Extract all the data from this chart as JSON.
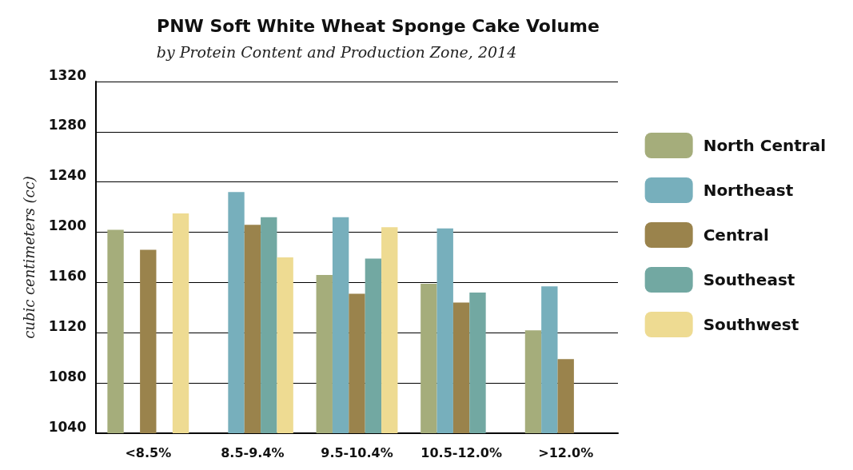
{
  "chart_data": {
    "type": "bar",
    "title": "PNW Soft White Wheat Sponge Cake Volume",
    "subtitle": "by Protein Content and Production Zone, 2014",
    "ylabel": "cubic centimeters (cc)",
    "categories": [
      "<8.5%",
      "8.5-9.4%",
      "9.5-10.4%",
      "10.5-12.0%",
      ">12.0%"
    ],
    "series": [
      {
        "name": "North Central",
        "color": "#a5ad7b",
        "values": [
          1202,
          null,
          1166,
          1159,
          1122
        ]
      },
      {
        "name": "Northeast",
        "color": "#77afbc",
        "values": [
          null,
          1232,
          1212,
          1203,
          1157
        ]
      },
      {
        "name": "Central",
        "color": "#9a834c",
        "values": [
          1186,
          1206,
          1151,
          1144,
          1099
        ]
      },
      {
        "name": "Southeast",
        "color": "#72a8a2",
        "values": [
          null,
          1212,
          1179,
          1152,
          null
        ]
      },
      {
        "name": "Southwest",
        "color": "#eedb92",
        "values": [
          1215,
          1180,
          1204,
          null,
          null
        ]
      }
    ],
    "ylim": [
      1040,
      1320
    ],
    "yticks": [
      1040,
      1080,
      1120,
      1160,
      1200,
      1240,
      1280,
      1320
    ],
    "grid": "y",
    "legend": "right"
  }
}
